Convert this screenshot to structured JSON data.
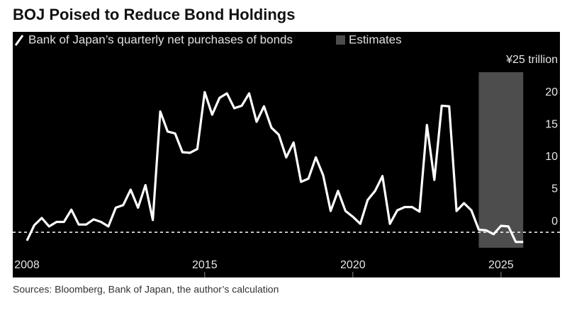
{
  "chart_data": {
    "type": "line",
    "title": "BOJ Poised to Reduce Bond Holdings",
    "source": "Sources: Bloomberg, Bank of Japan, the author’s calculation",
    "x": [
      2009,
      2009.25,
      2009.5,
      2009.75,
      2010,
      2010.25,
      2010.5,
      2010.75,
      2011,
      2011.25,
      2011.5,
      2011.75,
      2012,
      2012.25,
      2012.5,
      2012.75,
      2013,
      2013.25,
      2013.5,
      2013.75,
      2014,
      2014.25,
      2014.5,
      2014.75,
      2015,
      2015.25,
      2015.5,
      2015.75,
      2016,
      2016.25,
      2016.5,
      2016.75,
      2017,
      2017.25,
      2017.5,
      2017.75,
      2018,
      2018.25,
      2018.5,
      2018.75,
      2019,
      2019.25,
      2019.5,
      2019.75,
      2020,
      2020.25,
      2020.5,
      2020.75,
      2021,
      2021.25,
      2021.5,
      2021.75,
      2022,
      2022.25,
      2022.5,
      2022.75,
      2023,
      2023.25,
      2023.5,
      2023.75,
      2024,
      2024.25,
      2024.5,
      2024.75,
      2025,
      2025.25,
      2025.5,
      2025.75
    ],
    "series": [
      {
        "name": "Bank of Japan’s quarterly net purchases of bonds",
        "color": "#ffffff",
        "values": [
          -1.3,
          1.1,
          2.2,
          0.9,
          1.6,
          1.6,
          3.5,
          1.2,
          1.2,
          2.0,
          1.6,
          0.9,
          3.8,
          4.2,
          6.6,
          3.8,
          7.3,
          1.9,
          18.7,
          15.6,
          15.3,
          12.4,
          12.3,
          12.9,
          21.7,
          18.2,
          20.8,
          21.5,
          19.2,
          19.6,
          21.5,
          17.1,
          19.5,
          16.2,
          15.1,
          11.6,
          13.9,
          7.8,
          8.3,
          11.6,
          8.8,
          3.3,
          6.4,
          3.3,
          2.4,
          1.3,
          5.0,
          6.4,
          8.7,
          1.3,
          3.4,
          3.9,
          3.9,
          3.2,
          16.6,
          8.1,
          19.6,
          19.5,
          3.3,
          4.5,
          3.4,
          0.4,
          0.3,
          -0.3,
          1.0,
          0.9,
          -1.5,
          -1.5
        ]
      }
    ],
    "estimates": {
      "name": "Estimates",
      "color": "#4d4d4d",
      "range": [
        2024.25,
        2025.75
      ]
    },
    "xlim": [
      2008.9,
      2026.2
    ],
    "xticks": [
      2008,
      2015,
      2020,
      2025
    ],
    "ylim": [
      -2.4,
      25
    ],
    "yticks": [
      0,
      5,
      10,
      15,
      20,
      {
        "value": 25,
        "label": "¥25 trillion"
      }
    ],
    "zero_line": true,
    "background": "#000000"
  }
}
